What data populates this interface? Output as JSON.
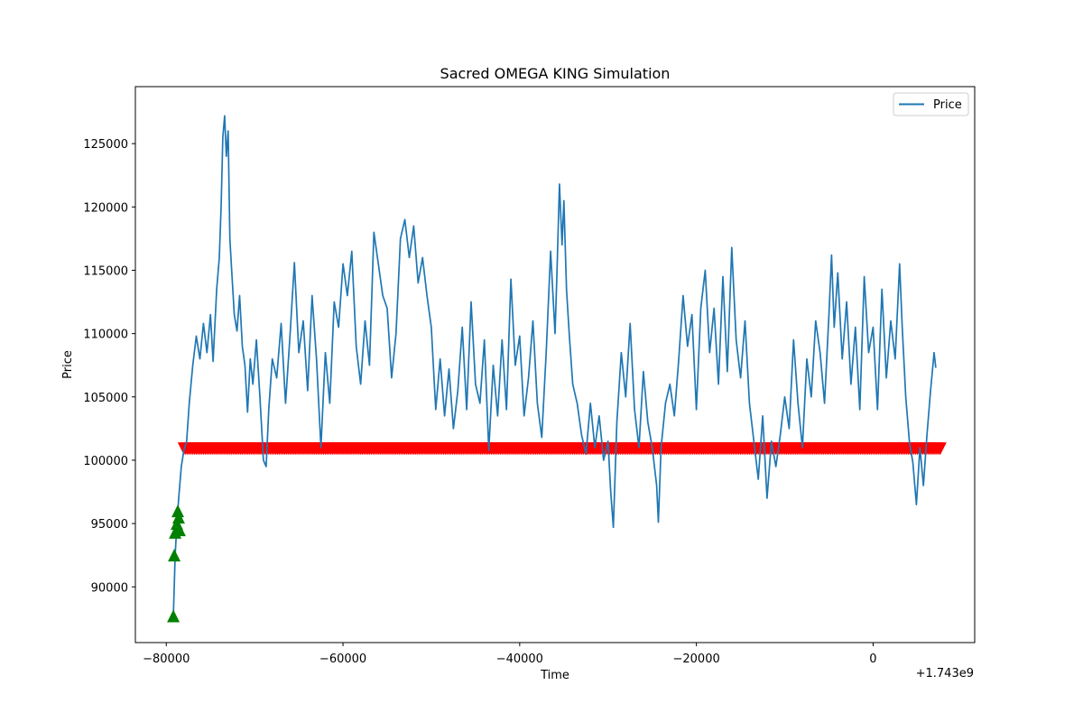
{
  "chart_data": {
    "type": "line",
    "title": "Sacred OMEGA KING Simulation",
    "xlabel": "Time",
    "ylabel": "Price",
    "x_offset_label": "+1.743e9",
    "xlim": [
      -83500,
      11500
    ],
    "ylim": [
      85600,
      129500
    ],
    "xticks": [
      -80000,
      -60000,
      -40000,
      -20000,
      0
    ],
    "xtick_labels": [
      "−80000",
      "−60000",
      "−40000",
      "−20000",
      "0"
    ],
    "yticks": [
      90000,
      95000,
      100000,
      105000,
      110000,
      115000,
      120000,
      125000
    ],
    "ytick_labels": [
      "90000",
      "95000",
      "100000",
      "105000",
      "110000",
      "115000",
      "120000",
      "125000"
    ],
    "grid": false,
    "legend": {
      "position": "top-right",
      "entries": [
        {
          "label": "Price",
          "color": "#1f77b4"
        }
      ]
    },
    "series": [
      {
        "name": "Price",
        "color": "#1f77b4",
        "points": [
          [
            -79200,
            87700
          ],
          [
            -79000,
            92500
          ],
          [
            -78800,
            95000
          ],
          [
            -78600,
            97000
          ],
          [
            -78300,
            99500
          ],
          [
            -78000,
            100800
          ],
          [
            -77700,
            101500
          ],
          [
            -77400,
            104500
          ],
          [
            -77000,
            107500
          ],
          [
            -76600,
            109800
          ],
          [
            -76200,
            108000
          ],
          [
            -75800,
            110800
          ],
          [
            -75400,
            108500
          ],
          [
            -75000,
            111500
          ],
          [
            -74700,
            107800
          ],
          [
            -74300,
            113500
          ],
          [
            -74000,
            116000
          ],
          [
            -73800,
            120000
          ],
          [
            -73600,
            125500
          ],
          [
            -73400,
            127200
          ],
          [
            -73200,
            124000
          ],
          [
            -73000,
            126000
          ],
          [
            -72800,
            117500
          ],
          [
            -72600,
            115000
          ],
          [
            -72300,
            111500
          ],
          [
            -72000,
            110200
          ],
          [
            -71700,
            113000
          ],
          [
            -71400,
            109000
          ],
          [
            -71100,
            107500
          ],
          [
            -70800,
            103800
          ],
          [
            -70500,
            108000
          ],
          [
            -70200,
            106000
          ],
          [
            -69800,
            109500
          ],
          [
            -69400,
            105000
          ],
          [
            -69000,
            100000
          ],
          [
            -68700,
            99500
          ],
          [
            -68400,
            104000
          ],
          [
            -68000,
            108000
          ],
          [
            -67500,
            106500
          ],
          [
            -67000,
            110800
          ],
          [
            -66500,
            104500
          ],
          [
            -66000,
            109800
          ],
          [
            -65500,
            115600
          ],
          [
            -65000,
            108500
          ],
          [
            -64500,
            111000
          ],
          [
            -64000,
            105500
          ],
          [
            -63500,
            113000
          ],
          [
            -63000,
            108000
          ],
          [
            -62500,
            101000
          ],
          [
            -62000,
            108500
          ],
          [
            -61500,
            104500
          ],
          [
            -61000,
            112500
          ],
          [
            -60500,
            110500
          ],
          [
            -60000,
            115500
          ],
          [
            -59500,
            113000
          ],
          [
            -59000,
            116500
          ],
          [
            -58500,
            109000
          ],
          [
            -58000,
            106000
          ],
          [
            -57500,
            111000
          ],
          [
            -57000,
            107500
          ],
          [
            -56500,
            118000
          ],
          [
            -56000,
            115500
          ],
          [
            -55500,
            113000
          ],
          [
            -55000,
            112000
          ],
          [
            -54500,
            106500
          ],
          [
            -54000,
            110000
          ],
          [
            -53500,
            117500
          ],
          [
            -53000,
            119000
          ],
          [
            -52500,
            116000
          ],
          [
            -52000,
            118500
          ],
          [
            -51500,
            114000
          ],
          [
            -51000,
            116000
          ],
          [
            -50500,
            113000
          ],
          [
            -50000,
            110500
          ],
          [
            -49500,
            104000
          ],
          [
            -49000,
            108000
          ],
          [
            -48500,
            103500
          ],
          [
            -48000,
            107200
          ],
          [
            -47500,
            102500
          ],
          [
            -47000,
            105500
          ],
          [
            -46500,
            110500
          ],
          [
            -46000,
            104000
          ],
          [
            -45500,
            112500
          ],
          [
            -45000,
            106000
          ],
          [
            -44500,
            104500
          ],
          [
            -44000,
            109500
          ],
          [
            -43500,
            100800
          ],
          [
            -43000,
            107500
          ],
          [
            -42500,
            103500
          ],
          [
            -42000,
            109500
          ],
          [
            -41500,
            104000
          ],
          [
            -41000,
            114300
          ],
          [
            -40500,
            107500
          ],
          [
            -40000,
            109800
          ],
          [
            -39500,
            103500
          ],
          [
            -39000,
            106500
          ],
          [
            -38500,
            111000
          ],
          [
            -38000,
            104500
          ],
          [
            -37500,
            101800
          ],
          [
            -37000,
            108500
          ],
          [
            -36500,
            116500
          ],
          [
            -36000,
            110000
          ],
          [
            -35800,
            114500
          ],
          [
            -35500,
            121800
          ],
          [
            -35200,
            117000
          ],
          [
            -35000,
            120500
          ],
          [
            -34700,
            113500
          ],
          [
            -34400,
            110000
          ],
          [
            -34000,
            106000
          ],
          [
            -33500,
            104500
          ],
          [
            -33000,
            102000
          ],
          [
            -32500,
            100500
          ],
          [
            -32000,
            104500
          ],
          [
            -31500,
            101000
          ],
          [
            -31000,
            103500
          ],
          [
            -30500,
            100000
          ],
          [
            -30000,
            101500
          ],
          [
            -29700,
            97500
          ],
          [
            -29400,
            94700
          ],
          [
            -29000,
            103000
          ],
          [
            -28500,
            108500
          ],
          [
            -28000,
            105000
          ],
          [
            -27500,
            110800
          ],
          [
            -27000,
            104000
          ],
          [
            -26500,
            101000
          ],
          [
            -26000,
            107000
          ],
          [
            -25500,
            103000
          ],
          [
            -25000,
            101000
          ],
          [
            -24500,
            98000
          ],
          [
            -24300,
            95100
          ],
          [
            -24000,
            101000
          ],
          [
            -23500,
            104500
          ],
          [
            -23000,
            106000
          ],
          [
            -22500,
            103500
          ],
          [
            -22000,
            108000
          ],
          [
            -21500,
            113000
          ],
          [
            -21000,
            109000
          ],
          [
            -20500,
            111500
          ],
          [
            -20000,
            104000
          ],
          [
            -19500,
            112000
          ],
          [
            -19000,
            115000
          ],
          [
            -18500,
            108500
          ],
          [
            -18000,
            112000
          ],
          [
            -17500,
            106000
          ],
          [
            -17000,
            114500
          ],
          [
            -16500,
            107000
          ],
          [
            -16000,
            116800
          ],
          [
            -15500,
            109500
          ],
          [
            -15000,
            106500
          ],
          [
            -14500,
            111000
          ],
          [
            -14000,
            104500
          ],
          [
            -13500,
            101500
          ],
          [
            -13000,
            98500
          ],
          [
            -12500,
            103500
          ],
          [
            -12000,
            97000
          ],
          [
            -11500,
            101500
          ],
          [
            -11000,
            99500
          ],
          [
            -10500,
            102000
          ],
          [
            -10000,
            105000
          ],
          [
            -9500,
            102500
          ],
          [
            -9000,
            109500
          ],
          [
            -8500,
            104500
          ],
          [
            -8000,
            101000
          ],
          [
            -7500,
            108000
          ],
          [
            -7000,
            105000
          ],
          [
            -6500,
            111000
          ],
          [
            -6000,
            108500
          ],
          [
            -5500,
            104500
          ],
          [
            -5000,
            111500
          ],
          [
            -4700,
            116200
          ],
          [
            -4400,
            110500
          ],
          [
            -4000,
            114800
          ],
          [
            -3500,
            108000
          ],
          [
            -3000,
            112500
          ],
          [
            -2500,
            106000
          ],
          [
            -2000,
            110500
          ],
          [
            -1500,
            104000
          ],
          [
            -1000,
            114500
          ],
          [
            -500,
            108500
          ],
          [
            0,
            110500
          ],
          [
            500,
            104000
          ],
          [
            1000,
            113500
          ],
          [
            1500,
            106500
          ],
          [
            2000,
            111000
          ],
          [
            2500,
            108000
          ],
          [
            3000,
            115500
          ],
          [
            3300,
            110500
          ],
          [
            3700,
            105000
          ],
          [
            4100,
            101500
          ],
          [
            4500,
            99800
          ],
          [
            4900,
            96500
          ],
          [
            5300,
            101000
          ],
          [
            5700,
            98000
          ],
          [
            6100,
            102000
          ],
          [
            6500,
            105500
          ],
          [
            6900,
            108500
          ],
          [
            7100,
            107300
          ]
        ]
      }
    ],
    "buy_markers": {
      "marker": "triangle-up",
      "color": "#008000",
      "points": [
        [
          -79200,
          87700
        ],
        [
          -79100,
          92500
        ],
        [
          -79000,
          94300
        ],
        [
          -78800,
          95000
        ],
        [
          -78700,
          96000
        ],
        [
          -78600,
          95500
        ],
        [
          -78500,
          94500
        ]
      ]
    },
    "sell_markers": {
      "marker": "triangle-down",
      "color": "#ff0000",
      "x_range": [
        -78000,
        7700
      ],
      "y": 100900
    }
  }
}
